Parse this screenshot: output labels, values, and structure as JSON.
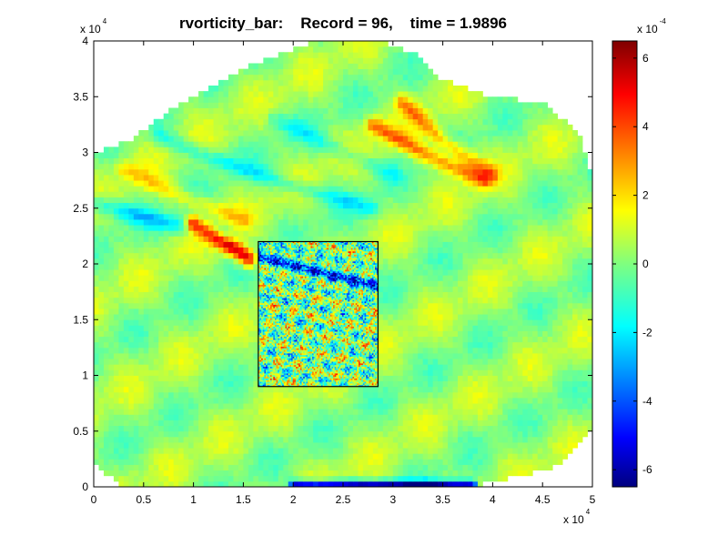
{
  "chart_data": {
    "type": "heatmap",
    "title": "rvorticity_bar:    Record = 96,    time = 1.9896",
    "x_axis": {
      "range": [
        0,
        50000
      ],
      "ticks": [
        0,
        5000,
        10000,
        15000,
        20000,
        25000,
        30000,
        35000,
        40000,
        45000,
        50000
      ],
      "tick_labels": [
        "0",
        "0.5",
        "1",
        "1.5",
        "2",
        "2.5",
        "3",
        "3.5",
        "4",
        "4.5",
        "5"
      ],
      "multiplier_base": "x 10",
      "multiplier_exp": "4"
    },
    "y_axis": {
      "range": [
        0,
        40000
      ],
      "ticks": [
        0,
        5000,
        10000,
        15000,
        20000,
        25000,
        30000,
        35000,
        40000
      ],
      "tick_labels": [
        "0",
        "0.5",
        "1",
        "1.5",
        "2",
        "2.5",
        "3",
        "3.5",
        "4"
      ],
      "multiplier_base": "x 10",
      "multiplier_exp": "4"
    },
    "colorbar": {
      "range": [
        -0.00065,
        0.00065
      ],
      "ticks": [
        -0.0006,
        -0.0004,
        -0.0002,
        0,
        0.0002,
        0.0004,
        0.0006
      ],
      "tick_labels": [
        "-6",
        "-4",
        "-2",
        "0",
        "2",
        "4",
        "6"
      ],
      "multiplier_base": "x 10",
      "multiplier_exp": "-4",
      "colormap": "jet"
    },
    "nested_domain_box": {
      "x": [
        16500,
        28500
      ],
      "y": [
        9000,
        22000
      ]
    },
    "coarse_domain_outline": [
      [
        0,
        2000
      ],
      [
        0,
        30000
      ],
      [
        3500,
        31000
      ],
      [
        8000,
        34000
      ],
      [
        15000,
        37500
      ],
      [
        22000,
        40000
      ],
      [
        29000,
        40000
      ],
      [
        33000,
        38500
      ],
      [
        35000,
        36500
      ],
      [
        40000,
        35000
      ],
      [
        45000,
        34500
      ],
      [
        48500,
        32000
      ],
      [
        50000,
        28000
      ],
      [
        50000,
        5000
      ],
      [
        47000,
        2000
      ],
      [
        43000,
        1000
      ],
      [
        38000,
        0
      ],
      [
        3000,
        0
      ]
    ],
    "features": [
      {
        "kind": "positive_streak",
        "points": [
          [
            10000,
            23500
          ],
          [
            13000,
            22000
          ],
          [
            15500,
            20500
          ]
        ],
        "strength": 0.00055
      },
      {
        "kind": "positive_streak",
        "points": [
          [
            28000,
            32500
          ],
          [
            33000,
            30000
          ],
          [
            39000,
            27500
          ]
        ],
        "strength": 0.0003
      },
      {
        "kind": "positive_streak",
        "points": [
          [
            31000,
            34500
          ],
          [
            35000,
            31000
          ],
          [
            40000,
            28000
          ]
        ],
        "strength": 0.00025
      },
      {
        "kind": "positive_streak",
        "points": [
          [
            3000,
            28500
          ],
          [
            9000,
            26000
          ],
          [
            15000,
            24000
          ]
        ],
        "strength": 0.00015
      },
      {
        "kind": "negative_streak",
        "points": [
          [
            0,
            25500
          ],
          [
            6000,
            24000
          ],
          [
            13000,
            22500
          ]
        ],
        "strength": -0.0002
      },
      {
        "kind": "negative_streak",
        "points": [
          [
            6500,
            31500
          ],
          [
            12000,
            29500
          ],
          [
            20000,
            27000
          ],
          [
            28000,
            25000
          ]
        ],
        "strength": -0.00015
      },
      {
        "kind": "negative_streak",
        "points": [
          [
            18000,
            33000
          ],
          [
            24000,
            30500
          ],
          [
            30000,
            28000
          ]
        ],
        "strength": -0.00012
      },
      {
        "kind": "negative_boundary",
        "points": [
          [
            20000,
            200
          ],
          [
            38000,
            200
          ]
        ],
        "strength": -0.0006
      }
    ]
  }
}
